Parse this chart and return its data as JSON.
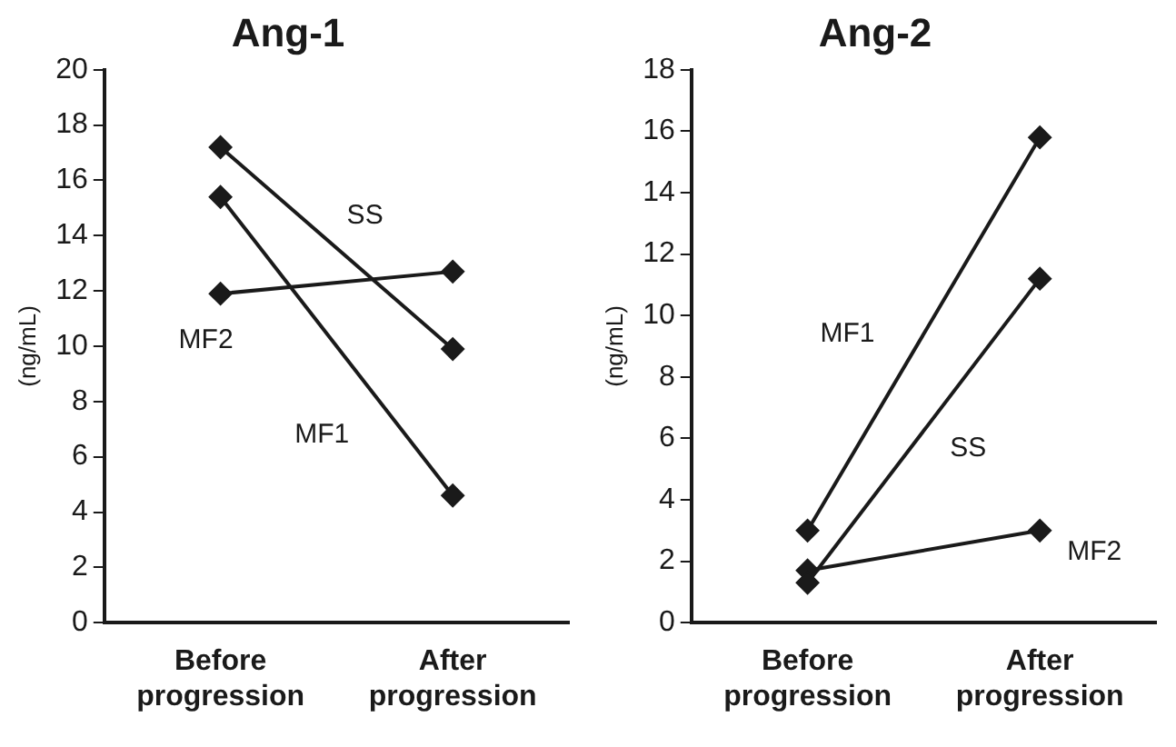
{
  "chart_data": [
    {
      "type": "line",
      "title": "Ang-1",
      "ylabel": "(ng/mL)",
      "categories": [
        "Before progression",
        "After progression"
      ],
      "ylim": [
        0,
        20
      ],
      "yticks": [
        0,
        2,
        4,
        6,
        8,
        10,
        12,
        14,
        16,
        18,
        20
      ],
      "grid": false,
      "legend": false,
      "marker": "diamond",
      "line_style": "solid",
      "series": [
        {
          "name": "SS",
          "color": "#1a1a1a",
          "values": [
            17.2,
            9.9
          ]
        },
        {
          "name": "MF1",
          "color": "#1a1a1a",
          "values": [
            15.4,
            4.6
          ]
        },
        {
          "name": "MF2",
          "color": "#1a1a1a",
          "values": [
            11.9,
            12.7
          ]
        }
      ]
    },
    {
      "type": "line",
      "title": "Ang-2",
      "ylabel": "(ng/mL)",
      "categories": [
        "Before progression",
        "After progression"
      ],
      "ylim": [
        0,
        18
      ],
      "yticks": [
        0,
        2,
        4,
        6,
        8,
        10,
        12,
        14,
        16,
        18
      ],
      "grid": false,
      "legend": false,
      "marker": "diamond",
      "line_style": "solid",
      "series": [
        {
          "name": "MF1",
          "color": "#1a1a1a",
          "values": [
            3.0,
            15.8
          ]
        },
        {
          "name": "SS",
          "color": "#1a1a1a",
          "values": [
            1.3,
            11.2
          ]
        },
        {
          "name": "MF2",
          "color": "#1a1a1a",
          "values": [
            1.7,
            3.0
          ]
        }
      ]
    }
  ]
}
